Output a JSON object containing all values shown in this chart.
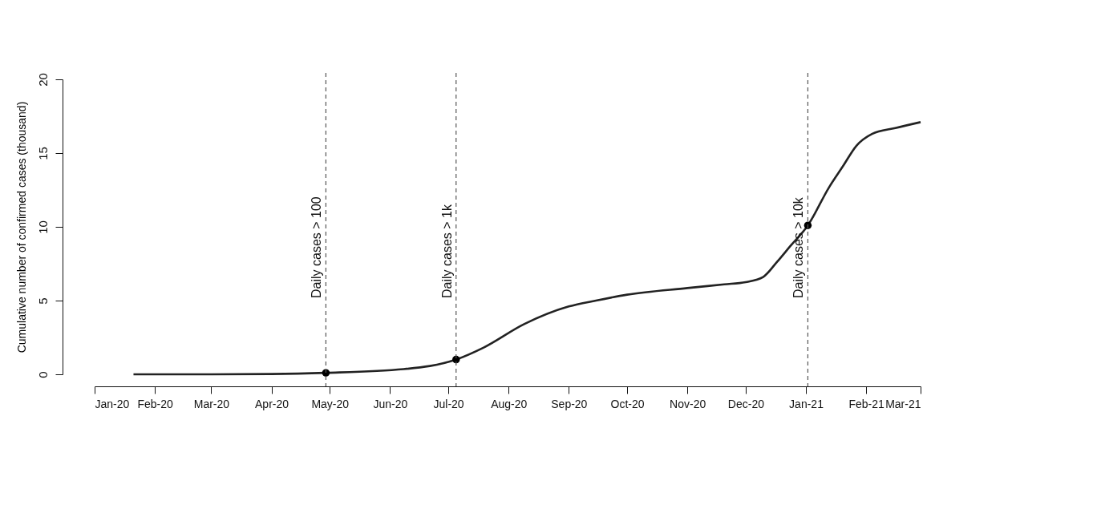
{
  "chart_data": {
    "type": "line",
    "ylabel": "Cumulative number of confirmed cases (thousand)",
    "x": [
      "2020-01-21",
      "2020-03-01",
      "2020-04-01",
      "2020-04-29",
      "2020-06-08",
      "2020-07-05",
      "2020-07-19",
      "2020-08-09",
      "2020-09-01",
      "2020-09-15",
      "2020-10-01",
      "2020-11-01",
      "2020-11-20",
      "2020-12-01",
      "2020-12-10",
      "2020-12-17",
      "2020-12-24",
      "2021-01-02",
      "2021-01-13",
      "2021-01-20",
      "2021-01-27",
      "2021-02-04",
      "2021-02-16",
      "2021-03-01"
    ],
    "series": [
      {
        "color": "#222222",
        "values": [
          0,
          0,
          0.02,
          0.1,
          0.35,
          1.0,
          1.8,
          3.4,
          4.6,
          5.0,
          5.4,
          5.85,
          6.1,
          6.25,
          6.6,
          7.6,
          8.7,
          10.1,
          12.7,
          14.1,
          15.5,
          16.3,
          16.7,
          17.1
        ]
      },
      {
        "type": "scatter",
        "color": "#000000",
        "x": [
          "2020-04-29",
          "2020-07-05",
          "2021-01-02"
        ],
        "values": [
          0.1,
          1.0,
          10.1
        ]
      }
    ],
    "xlim": [
      "2020-01-01",
      "2021-03-01"
    ],
    "xticks": [
      {
        "value": "2020-01-01",
        "label": "Jan-20"
      },
      {
        "value": "2020-02-01",
        "label": "Feb-20"
      },
      {
        "value": "2020-03-01",
        "label": "Mar-20"
      },
      {
        "value": "2020-04-01",
        "label": "Apr-20"
      },
      {
        "value": "2020-05-01",
        "label": "May-20"
      },
      {
        "value": "2020-06-01",
        "label": "Jun-20"
      },
      {
        "value": "2020-07-01",
        "label": "Jul-20"
      },
      {
        "value": "2020-08-01",
        "label": "Aug-20"
      },
      {
        "value": "2020-09-01",
        "label": "Sep-20"
      },
      {
        "value": "2020-10-01",
        "label": "Oct-20"
      },
      {
        "value": "2020-11-01",
        "label": "Nov-20"
      },
      {
        "value": "2020-12-01",
        "label": "Dec-20"
      },
      {
        "value": "2021-01-01",
        "label": "Jan-21"
      },
      {
        "value": "2021-02-01",
        "label": "Feb-21"
      },
      {
        "value": "2021-03-01",
        "label": "Mar-21"
      }
    ],
    "ylim": [
      0,
      20
    ],
    "yticks": [
      0,
      5,
      10,
      15,
      20
    ],
    "ref_lines": [
      {
        "axis": "x",
        "value": "2020-04-29",
        "label": "Daily cases > 100",
        "line_style": "dashed",
        "color": "#555555"
      },
      {
        "axis": "x",
        "value": "2020-07-05",
        "label": "Daily cases > 1k",
        "line_style": "dashed",
        "color": "#555555"
      },
      {
        "axis": "x",
        "value": "2021-01-02",
        "label": "Daily cases > 10k",
        "line_style": "dashed",
        "color": "#555555"
      }
    ]
  }
}
